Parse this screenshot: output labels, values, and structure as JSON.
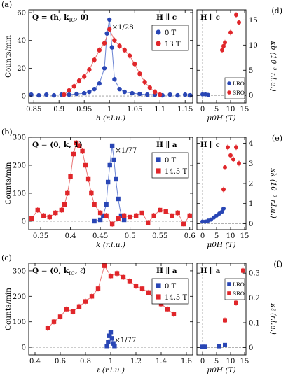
{
  "colors": {
    "blue": "#2946b5",
    "red": "#e0262a",
    "fit_red": "#e14848",
    "fit_blue": "#3a5bc4",
    "grid": "#999999"
  },
  "chart_data": [
    {
      "id": "a",
      "panel_label": "(a)",
      "type": "scatter",
      "q_label": "Q = (h, k",
      "q_sub": "IC",
      "q_tail": ", 0)",
      "field_label": "H ∥ c",
      "scale_note": "×1/28",
      "xlabel": "h (r.l.u.)",
      "ylabel": "Counts/min",
      "xlim": [
        0.84,
        1.165
      ],
      "ylim": [
        -5,
        62
      ],
      "xticks": [
        0.85,
        0.9,
        0.95,
        1,
        1.05,
        1.1,
        1.15
      ],
      "xtick_labels": [
        "0.85",
        "0.9",
        "0.95",
        "1",
        "1.05",
        "1.1",
        "1.15"
      ],
      "yticks": [
        0,
        20,
        40,
        60
      ],
      "ytick_labels": [
        "0",
        "20",
        "40",
        "60"
      ],
      "legend": [
        "0 T",
        "13 T"
      ],
      "marker": "circle",
      "series": [
        {
          "name": "0 T",
          "color_key": "blue",
          "x": [
            0.845,
            0.86,
            0.875,
            0.89,
            0.905,
            0.92,
            0.935,
            0.95,
            0.96,
            0.97,
            0.98,
            0.99,
            0.995,
            1.0,
            1.005,
            1.01,
            1.02,
            1.03,
            1.045,
            1.06,
            1.075,
            1.09,
            1.105,
            1.12,
            1.135,
            1.15,
            1.16
          ],
          "y": [
            1,
            0.5,
            1,
            0.5,
            1,
            1,
            1.5,
            2,
            3,
            5,
            9,
            20,
            45,
            55,
            35,
            12,
            5,
            3,
            2,
            1.5,
            1,
            1,
            0.5,
            1,
            0.5,
            1,
            0.5
          ]
        },
        {
          "name": "13 T",
          "color_key": "red",
          "x": [
            0.91,
            0.92,
            0.93,
            0.94,
            0.95,
            0.96,
            0.97,
            0.98,
            0.99,
            1.0,
            1.01,
            1.02,
            1.03,
            1.04,
            1.05,
            1.06,
            1.07,
            1.08,
            1.09,
            1.1
          ],
          "y": [
            1,
            4,
            7,
            11,
            14,
            19,
            26,
            33,
            38,
            48,
            40,
            36,
            33,
            29,
            23,
            16,
            10,
            6,
            3,
            1
          ]
        }
      ]
    },
    {
      "id": "b",
      "panel_label": "(b)",
      "type": "scatter",
      "q_label": "Q = (0, k, 1)",
      "q_sub": "",
      "q_tail": "",
      "field_label": "H ∥ a",
      "scale_note": "×1/77",
      "xlabel": "k (r.l.u.)",
      "ylabel": "Counts/min",
      "xlim": [
        0.33,
        0.605
      ],
      "ylim": [
        -30,
        300
      ],
      "xticks": [
        0.35,
        0.4,
        0.45,
        0.5,
        0.55,
        0.6
      ],
      "xtick_labels": [
        "0.35",
        "0.4",
        "0.45",
        "0.5",
        "0.55",
        "0.6"
      ],
      "yticks": [
        0,
        100,
        200,
        300
      ],
      "ytick_labels": [
        "0",
        "100",
        "200",
        "300"
      ],
      "legend": [
        "0 T",
        "14.5 T"
      ],
      "marker": "square",
      "series": [
        {
          "name": "0 T",
          "color_key": "blue",
          "x": [
            0.44,
            0.45,
            0.455,
            0.46,
            0.463,
            0.466,
            0.47,
            0.473,
            0.476,
            0.48,
            0.485,
            0.49
          ],
          "y": [
            0,
            5,
            20,
            60,
            140,
            200,
            270,
            220,
            150,
            80,
            20,
            5
          ]
        },
        {
          "name": "14.5 T",
          "color_key": "red",
          "x": [
            0.335,
            0.345,
            0.355,
            0.365,
            0.375,
            0.385,
            0.39,
            0.395,
            0.4,
            0.405,
            0.41,
            0.415,
            0.42,
            0.425,
            0.43,
            0.435,
            0.44,
            0.45,
            0.46,
            0.47,
            0.48,
            0.49,
            0.5,
            0.51,
            0.52,
            0.53,
            0.54,
            0.55,
            0.56,
            0.57,
            0.58,
            0.59,
            0.6
          ],
          "y": [
            10,
            40,
            20,
            15,
            30,
            40,
            60,
            100,
            160,
            240,
            280,
            270,
            250,
            200,
            150,
            100,
            60,
            30,
            20,
            -10,
            10,
            20,
            15,
            20,
            30,
            -5,
            20,
            40,
            35,
            20,
            30,
            -10,
            20
          ]
        }
      ]
    },
    {
      "id": "c",
      "panel_label": "(c)",
      "type": "scatter",
      "q_label": "Q = (0, k",
      "q_sub": "IC",
      "q_tail": ", ℓ)",
      "field_label": "H ∥ a",
      "scale_note": "×1/77",
      "xlabel": "ℓ (r.l.u.)",
      "ylabel": "Counts/min",
      "xlim": [
        0.35,
        1.65
      ],
      "ylim": [
        -30,
        330
      ],
      "xticks": [
        0.4,
        0.6,
        0.8,
        1,
        1.2,
        1.4,
        1.6
      ],
      "xtick_labels": [
        "0.4",
        "0.6",
        "0.8",
        "1",
        "1.2",
        "1.4",
        "1.6"
      ],
      "yticks": [
        0,
        100,
        200,
        300
      ],
      "ytick_labels": [
        "0",
        "100",
        "200",
        "300"
      ],
      "legend": [
        "0 T",
        "14.5 T"
      ],
      "marker": "square",
      "series": [
        {
          "name": "0 T",
          "color_key": "blue",
          "x": [
            0.97,
            0.98,
            0.99,
            1.0,
            1.01,
            1.02,
            1.03
          ],
          "y": [
            5,
            20,
            45,
            60,
            35,
            15,
            5
          ]
        },
        {
          "name": "14.5 T",
          "color_key": "red",
          "x": [
            0.5,
            0.55,
            0.6,
            0.65,
            0.7,
            0.75,
            0.8,
            0.85,
            0.9,
            0.95,
            1.0,
            1.05,
            1.1,
            1.15,
            1.2,
            1.25,
            1.3,
            1.35,
            1.4,
            1.45,
            1.5
          ],
          "y": [
            75,
            100,
            120,
            150,
            140,
            160,
            180,
            200,
            230,
            320,
            280,
            290,
            275,
            260,
            240,
            230,
            215,
            190,
            170,
            150,
            130
          ]
        }
      ]
    },
    {
      "id": "d",
      "panel_label": "(d)",
      "type": "scatter",
      "field_label": "H ∥ c",
      "xlabel": "μ0H (T)",
      "ylabel": "κb (10⁻³ r.l.u.)",
      "xlim": [
        -2,
        15.5
      ],
      "ylim": [
        -1.5,
        17
      ],
      "xticks": [
        0,
        5,
        10,
        15
      ],
      "xtick_labels": [
        "0",
        "5",
        "10",
        "15"
      ],
      "yticks": [
        0,
        5,
        10,
        15
      ],
      "ytick_labels": [
        "0",
        "5",
        "10",
        "15"
      ],
      "legend": [
        "LRO",
        "SRO"
      ],
      "marker": "circle",
      "series": [
        {
          "name": "LRO",
          "color_key": "blue",
          "x": [
            0,
            1,
            2
          ],
          "y": [
            0.2,
            0.2,
            0.1
          ]
        },
        {
          "name": "SRO",
          "color_key": "red",
          "x": [
            7,
            7.5,
            8,
            10,
            12,
            13
          ],
          "y": [
            9,
            9.8,
            10.5,
            12.5,
            16,
            14.5
          ]
        }
      ]
    },
    {
      "id": "e",
      "panel_label": "(e)",
      "type": "scatter",
      "field_label": "H ∥ c",
      "xlabel": "μ0H (T)",
      "ylabel": "κk (10⁻³ r.l.u.)",
      "xlim": [
        -2,
        15.5
      ],
      "ylim": [
        -0.3,
        4.3
      ],
      "xticks": [
        0,
        5,
        10,
        15
      ],
      "xtick_labels": [
        "0",
        "5",
        "10",
        "15"
      ],
      "yticks": [
        0,
        1,
        2,
        3,
        4
      ],
      "ytick_labels": [
        "0",
        "1",
        "2",
        "3",
        "4"
      ],
      "legend": [],
      "marker": "circle",
      "series": [
        {
          "name": "LRO",
          "color_key": "blue",
          "x": [
            0,
            1,
            2,
            3,
            4,
            5,
            6,
            7,
            7.5
          ],
          "y": [
            0.1,
            0.1,
            0.15,
            0.2,
            0.3,
            0.4,
            0.5,
            0.6,
            0.75
          ]
        },
        {
          "name": "SRO",
          "color_key": "red",
          "x": [
            7.5,
            8,
            9,
            10,
            11,
            12,
            13
          ],
          "y": [
            1.7,
            2.8,
            3.8,
            3.4,
            3.2,
            3.8,
            3.0
          ]
        }
      ]
    },
    {
      "id": "f",
      "panel_label": "(f)",
      "type": "scatter",
      "field_label": "H ∥ a",
      "xlabel": "μ0H (T)",
      "ylabel": "κℓ (r.l.u.)",
      "xlim": [
        -2,
        15.5
      ],
      "ylim": [
        -0.03,
        0.34
      ],
      "xticks": [
        0,
        5,
        10,
        15
      ],
      "xtick_labels": [
        "0",
        "5",
        "10",
        "15"
      ],
      "yticks": [
        0,
        0.1,
        0.2,
        0.3
      ],
      "ytick_labels": [
        "0",
        "0.1",
        "0.2",
        "0.3"
      ],
      "legend": [
        "LRO",
        "SRO"
      ],
      "marker": "square",
      "series": [
        {
          "name": "LRO",
          "color_key": "blue",
          "x": [
            0,
            1,
            6,
            8
          ],
          "y": [
            0.003,
            0.003,
            0.005,
            0.01
          ]
        },
        {
          "name": "SRO",
          "color_key": "red",
          "x": [
            8,
            12,
            14.5
          ],
          "y": [
            0.11,
            0.18,
            0.31
          ]
        }
      ]
    }
  ]
}
